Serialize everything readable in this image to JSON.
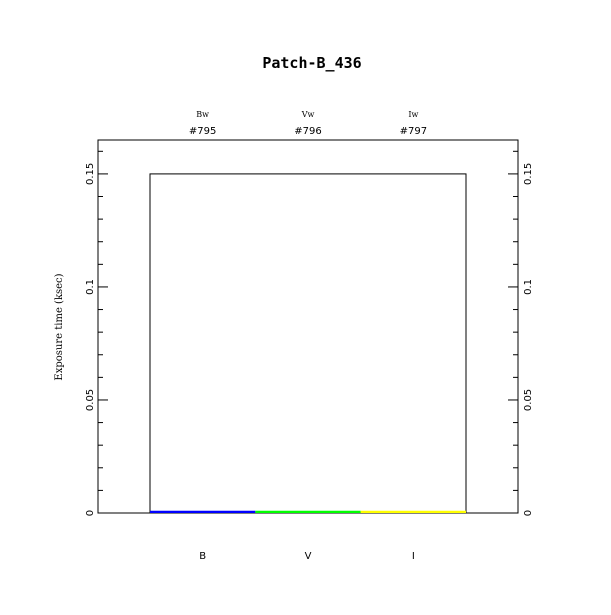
{
  "chart_data": {
    "type": "bar",
    "title": "Patch-B_436",
    "ylabel": "Exposure time (ksec)",
    "xlabel": "",
    "ylim": [
      0,
      0.165
    ],
    "yticks": [
      0,
      0.05,
      0.1,
      0.15
    ],
    "ytick_labels": [
      "0",
      "0.05",
      "0.1",
      "0.15"
    ],
    "grid": false,
    "categories": [
      "B",
      "V",
      "I"
    ],
    "filters": [
      "Bw",
      "Vw",
      "Iw"
    ],
    "ids": [
      "#795",
      "#796",
      "#797"
    ],
    "values": [
      0.001,
      0.001,
      0.001
    ],
    "colors": [
      "#0000ff",
      "#00ff00",
      "#ffff00"
    ],
    "total_outline": 0.15
  }
}
